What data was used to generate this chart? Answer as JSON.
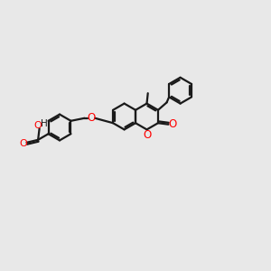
{
  "bg_color": "#e8e8e8",
  "bond_color": "#1a1a1a",
  "o_color": "#ff0000",
  "lw": 1.6,
  "figsize": [
    3.0,
    3.0
  ],
  "dpi": 100,
  "r": 0.48,
  "xlim": [
    0,
    10
  ],
  "ylim": [
    0,
    10
  ]
}
